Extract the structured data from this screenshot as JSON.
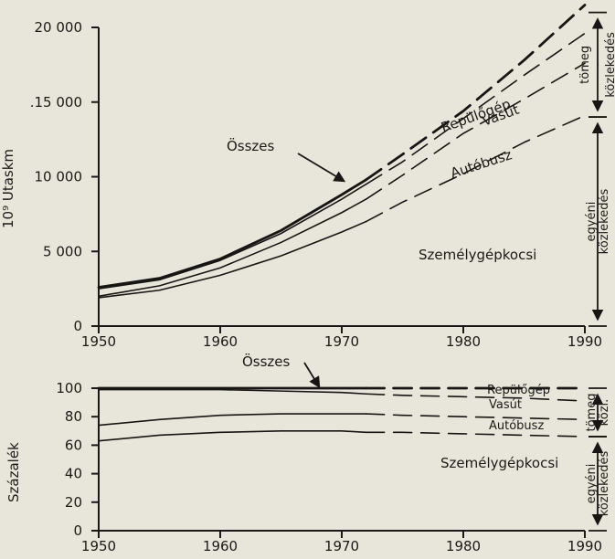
{
  "chart_data": [
    {
      "type": "line",
      "ylabel": "10⁹  Utaskm",
      "xlabel": "",
      "xlim": [
        1950,
        1990
      ],
      "ylim": [
        0,
        20000
      ],
      "x_ticks": [
        1950,
        1960,
        1970,
        1980,
        1990
      ],
      "x_tick_labels": [
        "1950",
        "1960",
        "1970",
        "1980",
        "1990"
      ],
      "y_ticks": [
        0,
        5000,
        10000,
        15000,
        20000
      ],
      "y_tick_labels": [
        "0",
        "5 000",
        "10 000",
        ".15 000",
        "20 000"
      ],
      "x": [
        1950,
        1955,
        1960,
        1965,
        1970,
        1972,
        1975,
        1980,
        1985,
        1990
      ],
      "projection_from": 1972,
      "series": [
        {
          "name": "Összes",
          "values": [
            2600,
            3200,
            4500,
            6400,
            8800,
            9800,
            11500,
            14400,
            17800,
            21500
          ]
        },
        {
          "name": "Repülőgép",
          "values": [
            2500,
            3100,
            4400,
            6200,
            8500,
            9500,
            11000,
            13900,
            16800,
            19600
          ]
        },
        {
          "name": "Vasút",
          "values": [
            2000,
            2700,
            3900,
            5600,
            7600,
            8500,
            10100,
            12900,
            15200,
            17600
          ]
        },
        {
          "name": "Autóbusz",
          "values": [
            1900,
            2400,
            3400,
            4700,
            6300,
            7000,
            8300,
            10200,
            12300,
            14100
          ]
        }
      ],
      "area_label": "Személygépkocsi",
      "grid": false,
      "brackets": [
        {
          "label": "tömeg - közlekedés",
          "range": [
            14000,
            21000
          ]
        },
        {
          "label": "egyéni közlekedés",
          "range": [
            0,
            14000
          ]
        }
      ]
    },
    {
      "type": "line",
      "ylabel": "Százalék",
      "xlabel": "",
      "xlim": [
        1950,
        1990
      ],
      "ylim": [
        0,
        100
      ],
      "x_ticks": [
        1950,
        1960,
        1970,
        1980,
        1990
      ],
      "x_tick_labels": [
        "1950",
        "1960",
        "1970",
        "1980",
        "1990"
      ],
      "y_ticks": [
        0,
        20,
        40,
        60,
        80,
        100
      ],
      "y_tick_labels": [
        "0",
        "20",
        "40",
        "60",
        "80",
        "100"
      ],
      "x": [
        1950,
        1955,
        1960,
        1965,
        1970,
        1972,
        1975,
        1980,
        1985,
        1990
      ],
      "projection_from": 1972,
      "series": [
        {
          "name": "Összes",
          "values": [
            100,
            100,
            100,
            100,
            100,
            100,
            100,
            100,
            100,
            100
          ]
        },
        {
          "name": "Repülőgép",
          "values": [
            99,
            99,
            99,
            98,
            97,
            96,
            95,
            94,
            93,
            91
          ]
        },
        {
          "name": "Vasút",
          "values": [
            74,
            78,
            81,
            82,
            82,
            82,
            81,
            80,
            79,
            78
          ]
        },
        {
          "name": "Autóbusz",
          "values": [
            63,
            67,
            69,
            70,
            70,
            69,
            69,
            68,
            67,
            66
          ]
        }
      ],
      "area_label": "Személygépkocsi",
      "grid": false,
      "brackets": [
        {
          "label": "tömeg közl.",
          "range": [
            66,
            100
          ]
        },
        {
          "label": "egyéni közlekedés",
          "range": [
            0,
            66
          ]
        }
      ]
    }
  ]
}
